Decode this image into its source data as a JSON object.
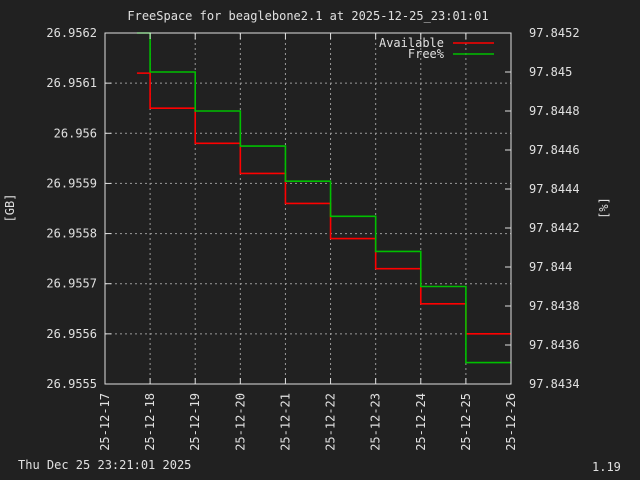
{
  "chart_data": {
    "type": "line",
    "title": "FreeSpace for beaglebone2.1  at 2025-12-25_23:01:01",
    "ylabel": "[GB]",
    "y2label": "[%]",
    "xlim": [
      "25-12-17",
      "25-12-26"
    ],
    "ylim": [
      26.9555,
      26.9562
    ],
    "y2lim": [
      97.8434,
      97.8452
    ],
    "x_ticks": [
      "25-12-17",
      "25-12-18",
      "25-12-19",
      "25-12-20",
      "25-12-21",
      "25-12-22",
      "25-12-23",
      "25-12-24",
      "25-12-25",
      "25-12-26"
    ],
    "y_ticks": [
      "26.9555",
      "26.9556",
      "26.9557",
      "26.9558",
      "26.9559",
      "26.956",
      "26.9561",
      "26.9562"
    ],
    "y2_ticks": [
      "97.8434",
      "97.8436",
      "97.8438",
      "97.844",
      "97.8442",
      "97.8444",
      "97.8446",
      "97.8448",
      "97.845",
      "97.8452"
    ],
    "grid": "dashed",
    "legend": "top-right",
    "series": [
      {
        "name": "Available",
        "axis": "left",
        "color": "#ff0000",
        "x": [
          "25-12-17 17:00",
          "25-12-18",
          "25-12-19",
          "25-12-20",
          "25-12-21",
          "25-12-22",
          "25-12-23",
          "25-12-24",
          "25-12-25",
          "25-12-26"
        ],
        "y": [
          26.95612,
          26.95605,
          26.95598,
          26.95592,
          26.95586,
          26.95579,
          26.95573,
          26.95566,
          26.9556,
          26.9556
        ]
      },
      {
        "name": "Free%",
        "axis": "right",
        "color": "#00c000",
        "x": [
          "25-12-17 17:00",
          "25-12-18",
          "25-12-19",
          "25-12-20",
          "25-12-21",
          "25-12-22",
          "25-12-23",
          "25-12-24",
          "25-12-25",
          "25-12-26"
        ],
        "y": [
          97.8452,
          97.845,
          97.8448,
          97.84462,
          97.84444,
          97.84426,
          97.84408,
          97.8439,
          97.84351,
          97.84351
        ]
      }
    ]
  },
  "footer": {
    "timestamp": "Thu Dec 25 23:21:01 2025",
    "version": "1.19"
  }
}
